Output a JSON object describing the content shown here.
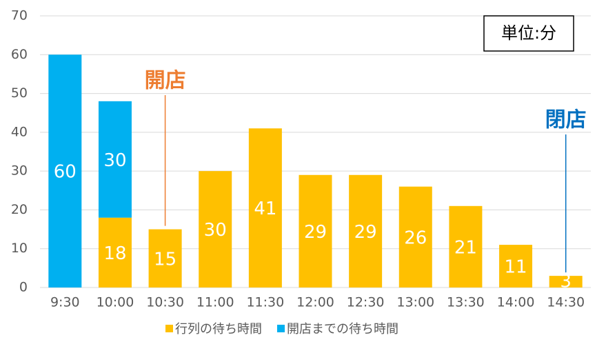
{
  "chart_data": {
    "type": "stacked_bar",
    "categories": [
      "9:30",
      "10:00",
      "10:30",
      "11:00",
      "11:30",
      "12:00",
      "12:30",
      "13:00",
      "13:30",
      "14:00",
      "14:30"
    ],
    "series": [
      {
        "name": "行列の待ち時間",
        "color": "#FFC000",
        "values": [
          null,
          18,
          15,
          30,
          41,
          29,
          29,
          26,
          21,
          11,
          3
        ]
      },
      {
        "name": "開店までの待ち時間",
        "color": "#00B0F0",
        "values": [
          60,
          30,
          null,
          null,
          null,
          null,
          null,
          null,
          null,
          null,
          null
        ]
      }
    ],
    "ylim": [
      0,
      70
    ],
    "yticks": [
      0,
      10,
      20,
      30,
      40,
      50,
      60,
      70
    ],
    "grid": true,
    "legend": "bottom",
    "unit_label": "単位:分",
    "annotations": [
      {
        "text": "開店",
        "category": "10:30",
        "color": "#ED7D31"
      },
      {
        "text": "閉店",
        "category": "14:30",
        "color": "#0070C0"
      }
    ]
  }
}
